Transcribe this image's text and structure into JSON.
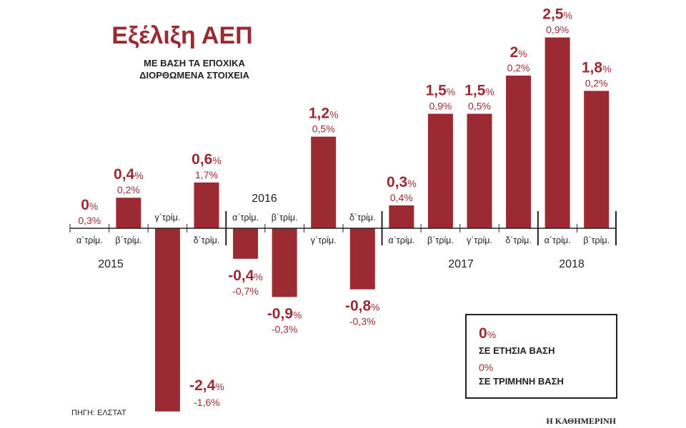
{
  "chart_data": {
    "type": "bar",
    "title": "Εξέλιξη ΑΕΠ",
    "subtitle": [
      "ΜΕ ΒΑΣΗ ΤΑ ΕΠΟΧΙΚΑ",
      "ΔΙΟΡΘΩΜΕΝΑ ΣΤΟΙΧΕΙΑ"
    ],
    "categories": [
      "α΄τρίμ.",
      "β΄τρίμ.",
      "γ΄τρίμ.",
      "δ΄τρίμ.",
      "α΄τρίμ.",
      "β΄τρίμ.",
      "γ΄τρίμ.",
      "δ΄τρίμ.",
      "α΄τρίμ.",
      "β΄τρίμ.",
      "γ΄τρίμ.",
      "δ΄τρίμ.",
      "α΄τρίμ.",
      "β΄τρίμ."
    ],
    "years": [
      {
        "label": "2015",
        "start": 0
      },
      {
        "label": "2016",
        "start": 4
      },
      {
        "label": "2017",
        "start": 8
      },
      {
        "label": "2018",
        "start": 12
      }
    ],
    "series": [
      {
        "name": "ΣΕ ΕΤΗΣΙΑ ΒΑΣΗ",
        "values": [
          0,
          0.4,
          -2.4,
          0.6,
          -0.4,
          -0.9,
          1.2,
          -0.8,
          0.3,
          1.5,
          1.5,
          2,
          2.5,
          1.8
        ],
        "labels": [
          "0",
          "0,4",
          "-2,4",
          "0,6",
          "-0,4",
          "-0,9",
          "1,2",
          "-0,8",
          "0,3",
          "1,5",
          "1,5",
          "2",
          "2,5",
          "1,8"
        ]
      },
      {
        "name": "ΣΕ ΤΡΙΜΗΝΗ ΒΑΣΗ",
        "values": [
          0.3,
          0.2,
          -1.6,
          1.7,
          -0.7,
          -0.3,
          0.5,
          -0.3,
          0.4,
          0.9,
          0.5,
          0.2,
          0.9,
          0.2
        ],
        "labels": [
          "0,3%",
          "0,2%",
          "-1,6%",
          "1,7%",
          "-0,7%",
          "-0,3%",
          "0,5%",
          "-0,3%",
          "0,4%",
          "0,9%",
          "0,5%",
          "0,2%",
          "0,9%",
          "0,2%"
        ]
      }
    ],
    "pct_sign": "%",
    "legend": {
      "big": "0",
      "big_pct": "%",
      "big_label": "ΣΕ ΕΤΗΣΙΑ ΒΑΣΗ",
      "small": "0%",
      "small_label": "ΣΕ ΤΡΙΜΗΝΗ ΒΑΣΗ",
      "placement": "bottom-right"
    },
    "color": "#9b2a33"
  },
  "source": "ΠΗΓΗ: ΕΛΣΤΑΤ",
  "publisher": "Η ΚΑΘΗΜΕΡΙΝΗ"
}
